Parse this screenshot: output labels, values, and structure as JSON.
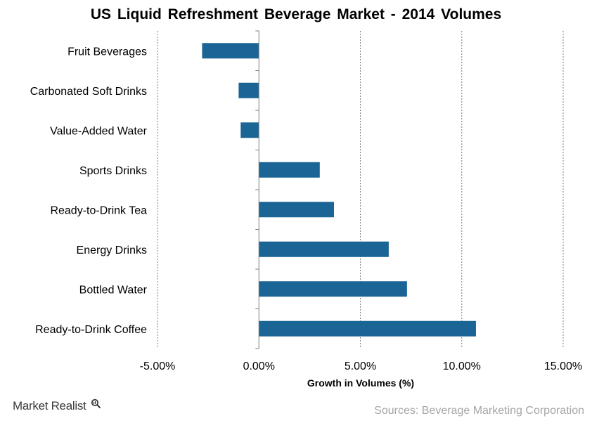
{
  "chart_data": {
    "type": "bar",
    "orientation": "horizontal",
    "title": "US Liquid Refreshment Beverage Market - 2014 Volumes",
    "xlabel": "Growth in Volumes (%)",
    "ylabel": "",
    "categories": [
      "Fruit Beverages",
      "Carbonated Soft Drinks",
      "Value-Added Water",
      "Sports Drinks",
      "Ready-to-Drink Tea",
      "Energy Drinks",
      "Bottled Water",
      "Ready-to-Drink Coffee"
    ],
    "values": [
      -2.8,
      -1.0,
      -0.9,
      3.0,
      3.7,
      6.4,
      7.3,
      10.7
    ],
    "xlim": [
      -5,
      15
    ],
    "xticks": [
      -5,
      0,
      5,
      10,
      15
    ],
    "xtick_labels": [
      "-5.00%",
      "0.00%",
      "5.00%",
      "10.00%",
      "15.00%"
    ],
    "grid": "vertical dashed",
    "legend": "none",
    "bar_color": "#1a6496"
  },
  "footer": {
    "brand": "Market Realist",
    "source": "Sources: Beverage Marketing Corporation"
  },
  "icons": {
    "brand": "magnifier-icon"
  }
}
